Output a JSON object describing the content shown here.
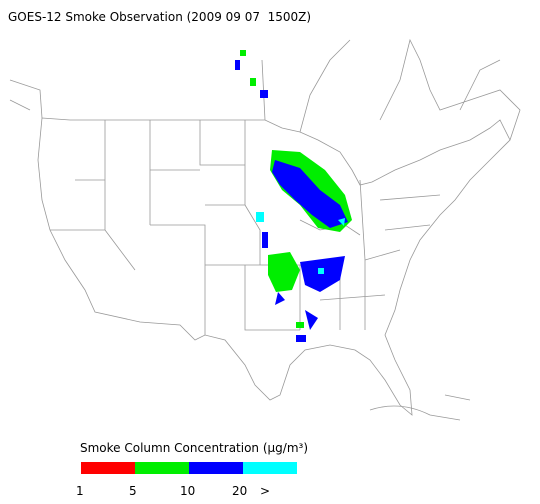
{
  "header": {
    "title": "GOES-12 Smoke Observation (2009 09 07  1500Z)"
  },
  "legend": {
    "title": "Smoke Column Concentration (μg/m³)",
    "colors": [
      "#ff0000",
      "#00ee00",
      "#0000ff",
      "#00ffff"
    ],
    "labels": [
      "1",
      "5",
      "10",
      "20",
      ">"
    ]
  }
}
